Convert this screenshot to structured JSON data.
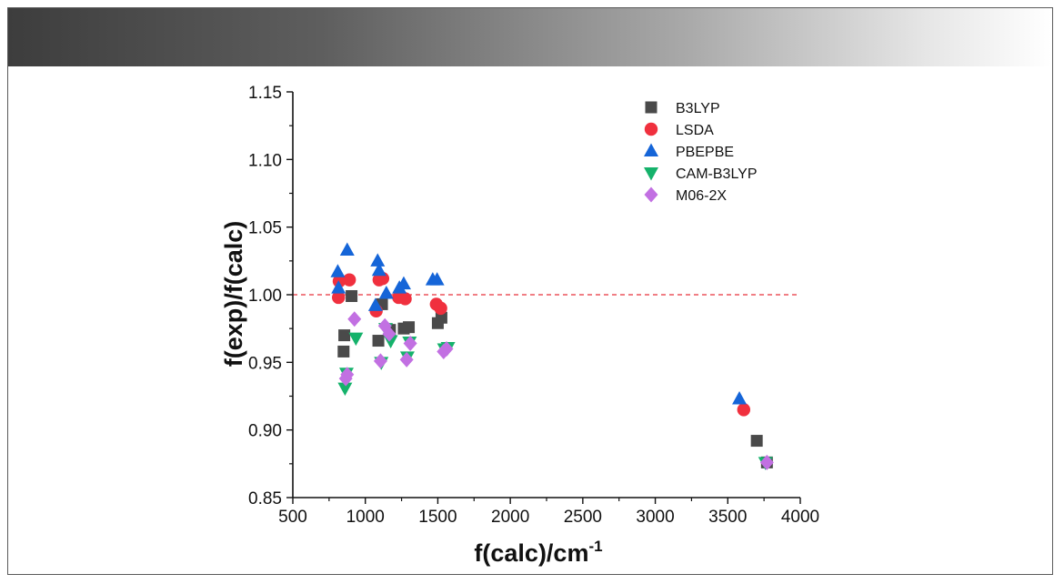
{
  "chart_data": {
    "type": "scatter",
    "title": "",
    "xlabel": "f(calc)/cm",
    "xlabel_sup": "-1",
    "ylabel": "f(exp)/f(calc)",
    "xlim": [
      500,
      4000
    ],
    "ylim": [
      0.85,
      1.15
    ],
    "xticks": [
      500,
      1000,
      1500,
      2000,
      2500,
      3000,
      3500,
      4000
    ],
    "yticks": [
      0.85,
      0.9,
      0.95,
      1.0,
      1.05,
      1.1,
      1.15
    ],
    "xtick_labels": [
      "500",
      "1000",
      "1500",
      "2000",
      "2500",
      "3000",
      "3500",
      "4000"
    ],
    "ytick_labels": [
      "0.85",
      "0.90",
      "0.95",
      "1.00",
      "1.05",
      "1.10",
      "1.15"
    ],
    "reference_line": {
      "y": 1.0,
      "style": "dashed",
      "color": "#e8303a"
    },
    "grid": false,
    "legend_position": "top-right",
    "series": [
      {
        "name": "B3LYP",
        "marker": "square",
        "color": "#4a4a4a",
        "points": [
          [
            850,
            0.958
          ],
          [
            855,
            0.97
          ],
          [
            905,
            0.999
          ],
          [
            1090,
            0.966
          ],
          [
            1115,
            0.993
          ],
          [
            1170,
            0.974
          ],
          [
            1265,
            0.975
          ],
          [
            1300,
            0.976
          ],
          [
            1500,
            0.979
          ],
          [
            1525,
            0.983
          ],
          [
            3700,
            0.892
          ],
          [
            3770,
            0.876
          ]
        ]
      },
      {
        "name": "LSDA",
        "marker": "circle",
        "color": "#f0303e",
        "points": [
          [
            815,
            0.998
          ],
          [
            820,
            1.01
          ],
          [
            890,
            1.011
          ],
          [
            1075,
            0.988
          ],
          [
            1095,
            1.011
          ],
          [
            1120,
            1.012
          ],
          [
            1230,
            0.998
          ],
          [
            1275,
            0.997
          ],
          [
            1490,
            0.993
          ],
          [
            1520,
            0.99
          ],
          [
            3610,
            0.915
          ]
        ]
      },
      {
        "name": "PBEPBE",
        "marker": "triangle-up",
        "color": "#1565d8",
        "points": [
          [
            810,
            1.017
          ],
          [
            815,
            1.005
          ],
          [
            875,
            1.033
          ],
          [
            1070,
            0.992
          ],
          [
            1085,
            1.025
          ],
          [
            1095,
            1.018
          ],
          [
            1145,
            1.001
          ],
          [
            1235,
            1.005
          ],
          [
            1265,
            1.008
          ],
          [
            1465,
            1.011
          ],
          [
            1495,
            1.011
          ],
          [
            3580,
            0.923
          ]
        ]
      },
      {
        "name": "CAM-B3LYP",
        "marker": "triangle-down",
        "color": "#15b26b",
        "points": [
          [
            860,
            0.931
          ],
          [
            870,
            0.942
          ],
          [
            935,
            0.968
          ],
          [
            1110,
            0.95
          ],
          [
            1140,
            0.975
          ],
          [
            1175,
            0.966
          ],
          [
            1290,
            0.954
          ],
          [
            1305,
            0.965
          ],
          [
            1545,
            0.96
          ],
          [
            1570,
            0.961
          ],
          [
            3760,
            0.876
          ]
        ]
      },
      {
        "name": "M06-2X",
        "marker": "diamond",
        "color": "#c270e2",
        "points": [
          [
            865,
            0.938
          ],
          [
            875,
            0.941
          ],
          [
            925,
            0.982
          ],
          [
            1105,
            0.951
          ],
          [
            1135,
            0.977
          ],
          [
            1165,
            0.971
          ],
          [
            1285,
            0.952
          ],
          [
            1310,
            0.964
          ],
          [
            1540,
            0.958
          ],
          [
            1560,
            0.96
          ],
          [
            3770,
            0.876
          ]
        ]
      }
    ]
  }
}
